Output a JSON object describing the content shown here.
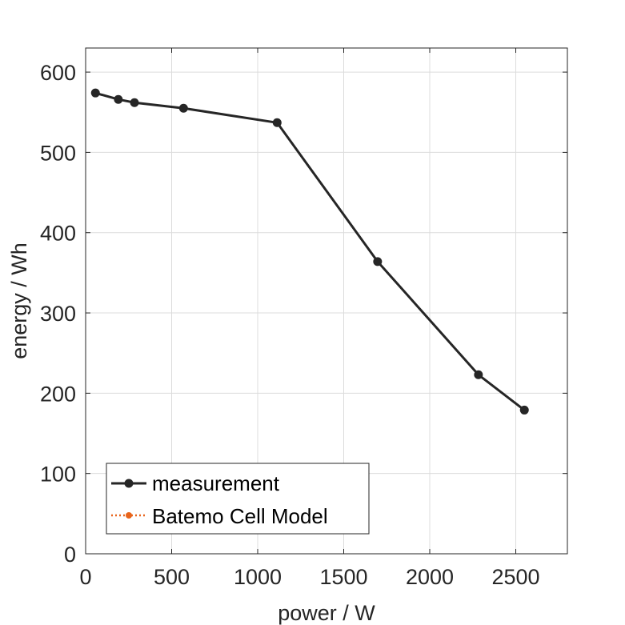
{
  "chart_data": {
    "type": "line",
    "xlabel": "power / W",
    "ylabel": "energy / Wh",
    "xlim": [
      0,
      2800
    ],
    "ylim": [
      0,
      630
    ],
    "xticks": [
      0,
      500,
      1000,
      1500,
      2000,
      2500
    ],
    "yticks": [
      0,
      100,
      200,
      300,
      400,
      500,
      600
    ],
    "xtick_labels": [
      "0",
      "500",
      "1000",
      "1500",
      "2000",
      "2500"
    ],
    "ytick_labels": [
      "0",
      "100",
      "200",
      "300",
      "400",
      "500",
      "600"
    ],
    "grid": true,
    "legend_position": "bottom-left",
    "series": [
      {
        "name": "measurement",
        "color": "#262626",
        "style": "solid-line-with-dots",
        "x": [
          57,
          190,
          284,
          569,
          1113,
          1697,
          2283,
          2550
        ],
        "y": [
          574,
          566,
          562,
          555,
          537,
          364,
          223,
          179
        ]
      },
      {
        "name": "Batemo Cell Model",
        "color": "#E8641B",
        "style": "dotted-line-with-dots",
        "x": [],
        "y": []
      }
    ]
  }
}
